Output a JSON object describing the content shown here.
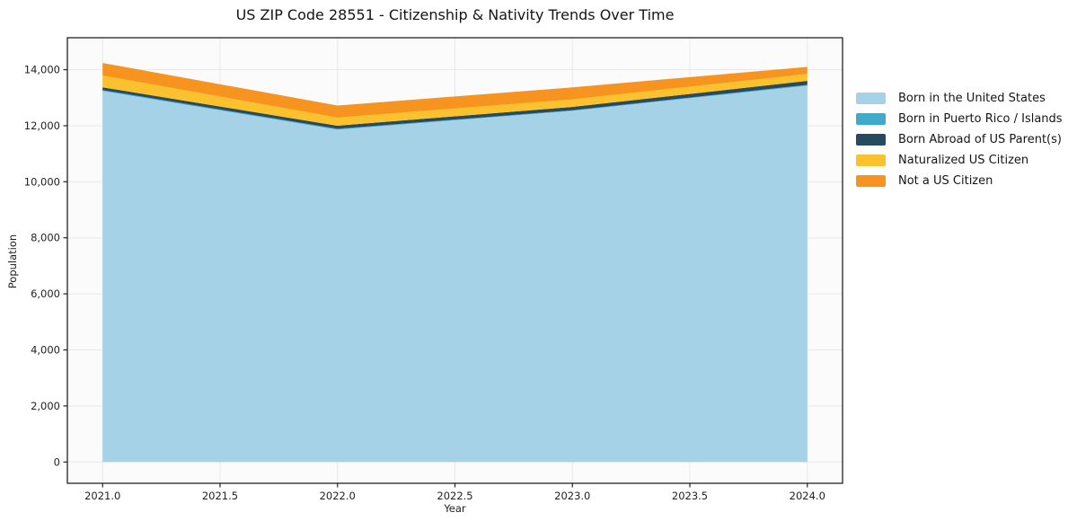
{
  "title": "US ZIP Code 28551 - Citizenship & Nativity Trends Over Time",
  "colors": {
    "plot_background": "#fbfbfb",
    "grid": "#e9e9e9",
    "spine": "#222222",
    "tick_text": "#222222"
  },
  "chart_data": {
    "type": "area",
    "stacked": true,
    "title": "US ZIP Code 28551 - Citizenship & Nativity Trends Over Time",
    "xlabel": "Year",
    "ylabel": "Population",
    "x": [
      2021,
      2022,
      2023,
      2024
    ],
    "series": [
      {
        "name": "Born in the United States",
        "color": "#a6d2e7",
        "values": [
          13240,
          11860,
          12530,
          13430
        ]
      },
      {
        "name": "Born in Puerto Rico / Islands",
        "color": "#41a9c9",
        "values": [
          30,
          30,
          20,
          30
        ]
      },
      {
        "name": "Born Abroad of US Parent(s)",
        "color": "#264a5e",
        "values": [
          100,
          110,
          120,
          140
        ]
      },
      {
        "name": "Naturalized US Citizen",
        "color": "#fcc22d",
        "values": [
          420,
          290,
          270,
          250
        ]
      },
      {
        "name": "Not a US Citizen",
        "color": "#f7941f",
        "values": [
          450,
          430,
          430,
          250
        ]
      }
    ],
    "totals": [
      14240,
      12720,
      13370,
      14100
    ],
    "xlim": [
      2020.85,
      2024.15
    ],
    "ylim": [
      -760,
      15140
    ],
    "grid": true,
    "legend_position": "right-outside",
    "xticks": [
      {
        "value": 2021.0,
        "label": "2021.0"
      },
      {
        "value": 2021.5,
        "label": "2021.5"
      },
      {
        "value": 2022.0,
        "label": "2022.0"
      },
      {
        "value": 2022.5,
        "label": "2022.5"
      },
      {
        "value": 2023.0,
        "label": "2023.0"
      },
      {
        "value": 2023.5,
        "label": "2023.5"
      },
      {
        "value": 2024.0,
        "label": "2024.0"
      }
    ],
    "yticks": [
      {
        "value": 0,
        "label": "0"
      },
      {
        "value": 2000,
        "label": "2,000"
      },
      {
        "value": 4000,
        "label": "4,000"
      },
      {
        "value": 6000,
        "label": "6,000"
      },
      {
        "value": 8000,
        "label": "8,000"
      },
      {
        "value": 10000,
        "label": "10,000"
      },
      {
        "value": 12000,
        "label": "12,000"
      },
      {
        "value": 14000,
        "label": "14,000"
      }
    ]
  }
}
